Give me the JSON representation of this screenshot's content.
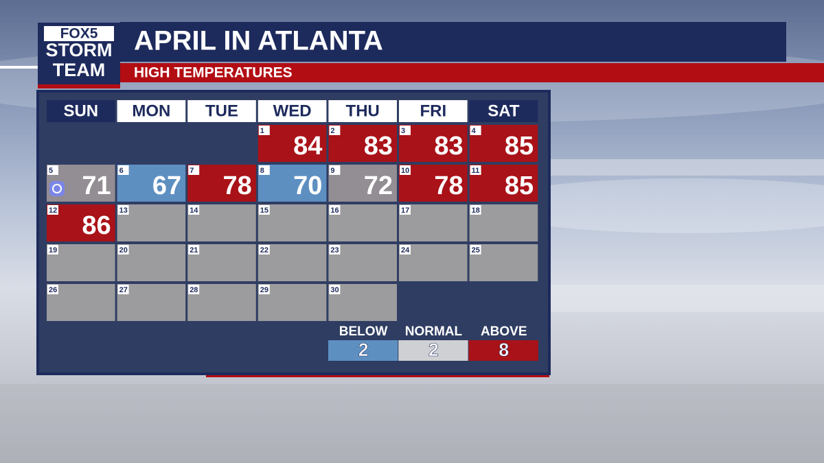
{
  "logo": {
    "brand": "FOX5",
    "line1": "STORM",
    "line2": "TEAM"
  },
  "header": {
    "title": "APRIL IN ATLANTA",
    "subtitle": "HIGH TEMPERATURES"
  },
  "calendar": {
    "weekdays": [
      "SUN",
      "MON",
      "TUE",
      "WED",
      "THU",
      "FRI",
      "SAT"
    ],
    "days": [
      {
        "date": 1,
        "temp": 84,
        "color": "#a91218"
      },
      {
        "date": 2,
        "temp": 83,
        "color": "#a91218"
      },
      {
        "date": 3,
        "temp": 83,
        "color": "#a91218"
      },
      {
        "date": 4,
        "temp": 85,
        "color": "#a91218"
      },
      {
        "date": 5,
        "temp": 71,
        "color": "#938d94",
        "icon": true
      },
      {
        "date": 6,
        "temp": 67,
        "color": "#5e8fc1"
      },
      {
        "date": 7,
        "temp": 78,
        "color": "#a91218"
      },
      {
        "date": 8,
        "temp": 70,
        "color": "#5e8fc1"
      },
      {
        "date": 9,
        "temp": 72,
        "color": "#938d94"
      },
      {
        "date": 10,
        "temp": 78,
        "color": "#a91218"
      },
      {
        "date": 11,
        "temp": 85,
        "color": "#a91218"
      },
      {
        "date": 12,
        "temp": 86,
        "color": "#a91218"
      },
      {
        "date": 13
      },
      {
        "date": 14
      },
      {
        "date": 15
      },
      {
        "date": 16
      },
      {
        "date": 17
      },
      {
        "date": 18
      },
      {
        "date": 19
      },
      {
        "date": 20
      },
      {
        "date": 21
      },
      {
        "date": 22
      },
      {
        "date": 23
      },
      {
        "date": 24
      },
      {
        "date": 25
      },
      {
        "date": 26
      },
      {
        "date": 27
      },
      {
        "date": 28
      },
      {
        "date": 29
      },
      {
        "date": 30
      }
    ]
  },
  "summary": [
    {
      "label": "BELOW",
      "count": 2,
      "color": "#5e8fc1"
    },
    {
      "label": "NORMAL",
      "count": 2,
      "color": "#cfd0d4"
    },
    {
      "label": "ABOVE",
      "count": 8,
      "color": "#a91218"
    }
  ]
}
